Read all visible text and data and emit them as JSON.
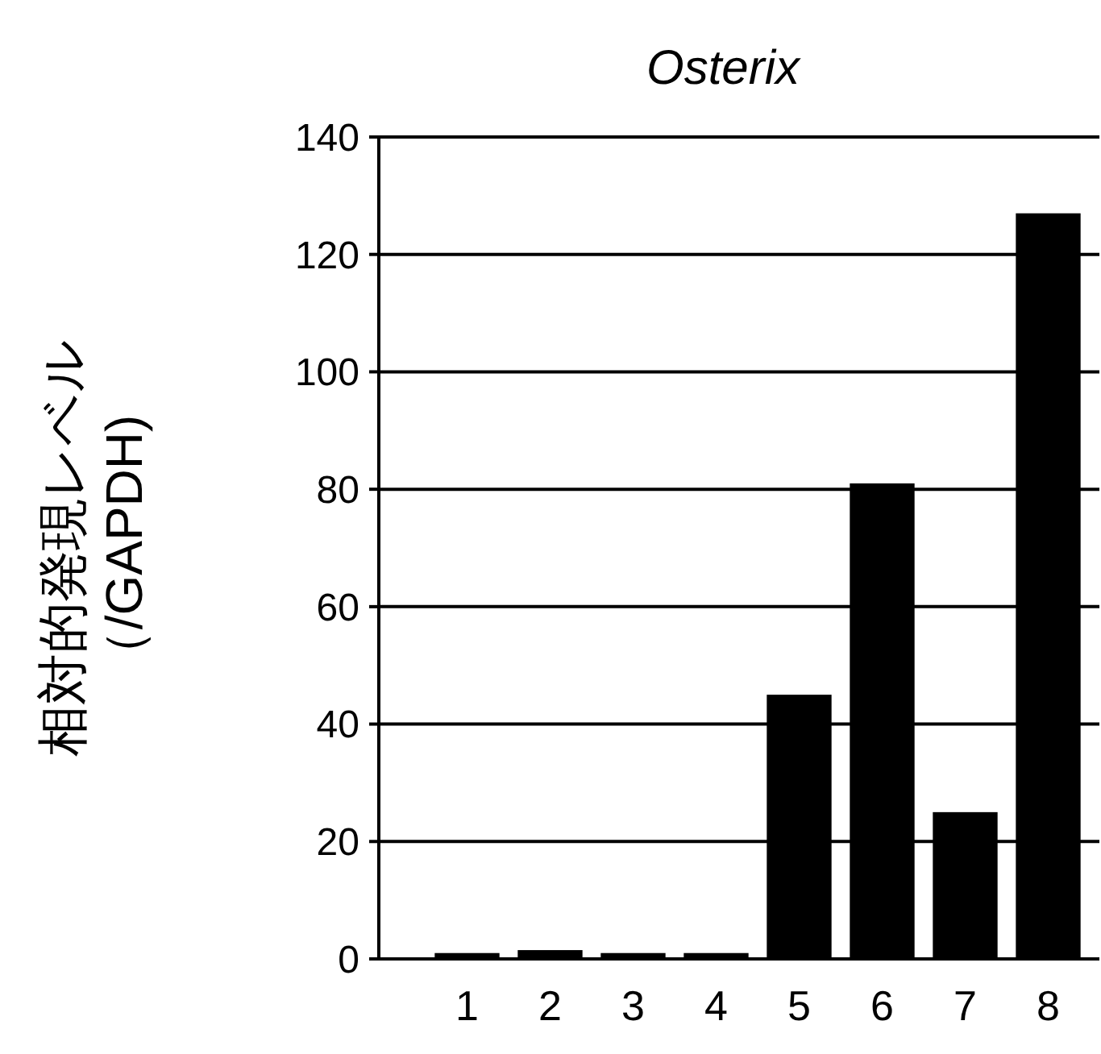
{
  "chart_data": {
    "type": "bar",
    "title": "Osterix",
    "ylabel": "相対的発現レベル（/GAPDH)",
    "categories": [
      "1",
      "2",
      "3",
      "4",
      "5",
      "6",
      "7",
      "8"
    ],
    "values": [
      1,
      1.5,
      1,
      1,
      45,
      81,
      25,
      127
    ],
    "color": "#000000",
    "ylim": [
      0,
      140
    ],
    "yticks": [
      0,
      20,
      40,
      60,
      80,
      100,
      120,
      140
    ],
    "grid": "y"
  }
}
